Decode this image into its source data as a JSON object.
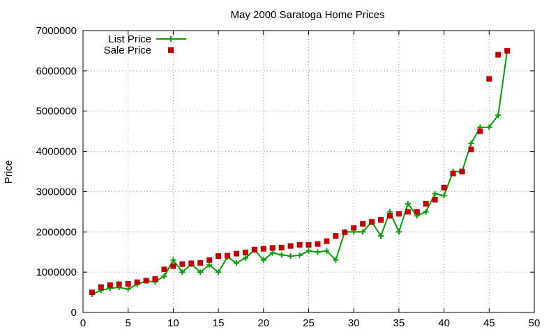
{
  "chart_data": {
    "type": "line",
    "title": "May 2000 Saratoga Home Prices",
    "xlabel": "",
    "ylabel": "Price",
    "xlim": [
      0,
      50
    ],
    "ylim": [
      0,
      7000000
    ],
    "x_ticks": [
      "0",
      "5",
      "10",
      "15",
      "20",
      "25",
      "30",
      "35",
      "40",
      "45",
      "50"
    ],
    "y_ticks": [
      "0",
      "1000000",
      "2000000",
      "3000000",
      "4000000",
      "5000000",
      "6000000",
      "7000000"
    ],
    "grid": true,
    "legend_position": "top-left",
    "x": [
      1,
      2,
      3,
      4,
      5,
      6,
      7,
      8,
      9,
      10,
      11,
      12,
      13,
      14,
      15,
      16,
      17,
      18,
      19,
      20,
      21,
      22,
      23,
      24,
      25,
      26,
      27,
      28,
      29,
      30,
      31,
      32,
      33,
      34,
      35,
      36,
      37,
      38,
      39,
      40,
      41,
      42,
      43,
      44,
      45,
      46,
      47
    ],
    "series": [
      {
        "name": "List Price",
        "style": "line-plus",
        "color": "#00a000",
        "values": [
          450000,
          550000,
          600000,
          620000,
          580000,
          700000,
          780000,
          760000,
          900000,
          1300000,
          1000000,
          1200000,
          1000000,
          1180000,
          1000000,
          1380000,
          1230000,
          1350000,
          1550000,
          1300000,
          1480000,
          1430000,
          1400000,
          1420000,
          1530000,
          1500000,
          1530000,
          1300000,
          2000000,
          2000000,
          2000000,
          2250000,
          1900000,
          2500000,
          2000000,
          2700000,
          2400000,
          2500000,
          2950000,
          2900000,
          3500000,
          3500000,
          4200000,
          4600000,
          4600000,
          4900000,
          6500000
        ]
      },
      {
        "name": "Sale Price",
        "style": "points-square",
        "color": "#c00000",
        "values": [
          500000,
          630000,
          680000,
          700000,
          710000,
          750000,
          790000,
          830000,
          1070000,
          1150000,
          1200000,
          1220000,
          1230000,
          1300000,
          1400000,
          1410000,
          1460000,
          1490000,
          1560000,
          1580000,
          1600000,
          1610000,
          1650000,
          1680000,
          1680000,
          1700000,
          1770000,
          1900000,
          1990000,
          2100000,
          2200000,
          2250000,
          2300000,
          2400000,
          2450000,
          2500000,
          2500000,
          2700000,
          2800000,
          3100000,
          3450000,
          3500000,
          4050000,
          4500000,
          5800000,
          6400000,
          6500000
        ]
      }
    ]
  }
}
